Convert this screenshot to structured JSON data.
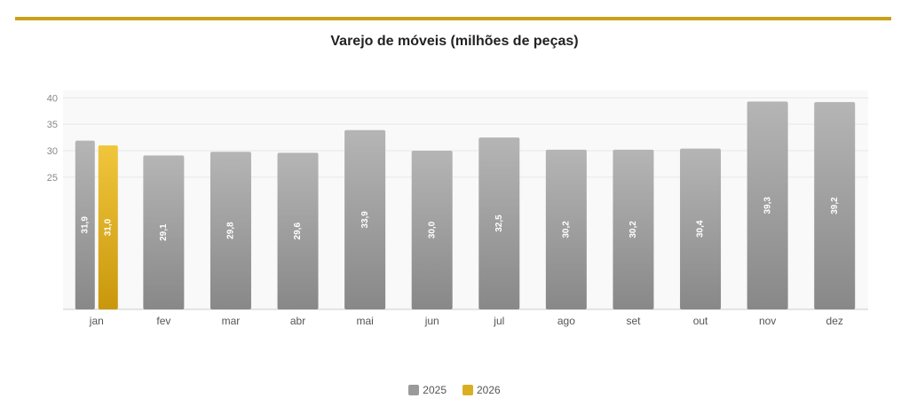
{
  "chart_data": {
    "type": "bar",
    "title": "Varejo de móveis (milhões de peças)",
    "categories": [
      "jan",
      "fev",
      "mar",
      "abr",
      "mai",
      "jun",
      "jul",
      "ago",
      "set",
      "out",
      "nov",
      "dez"
    ],
    "series": [
      {
        "name": "2025",
        "values": [
          31.9,
          29.1,
          29.8,
          29.6,
          33.9,
          30.0,
          32.5,
          30.2,
          30.2,
          30.4,
          39.3,
          39.2
        ],
        "labels": [
          "31,9",
          "29,1",
          "29,8",
          "29,6",
          "33,9",
          "30,0",
          "32,5",
          "30,2",
          "30,2",
          "30,4",
          "39,3",
          "39,2"
        ],
        "color": "#9a9a9a"
      },
      {
        "name": "2026",
        "values": [
          31.0,
          null,
          null,
          null,
          null,
          null,
          null,
          null,
          null,
          null,
          null,
          null
        ],
        "labels": [
          "31,0"
        ],
        "color": "#d4a820"
      }
    ],
    "yticks": [
      25,
      30,
      35,
      40
    ],
    "ylim": [
      0,
      41.4
    ],
    "grid": true,
    "legend": "bottom"
  },
  "accent_color": "#c9a01b"
}
